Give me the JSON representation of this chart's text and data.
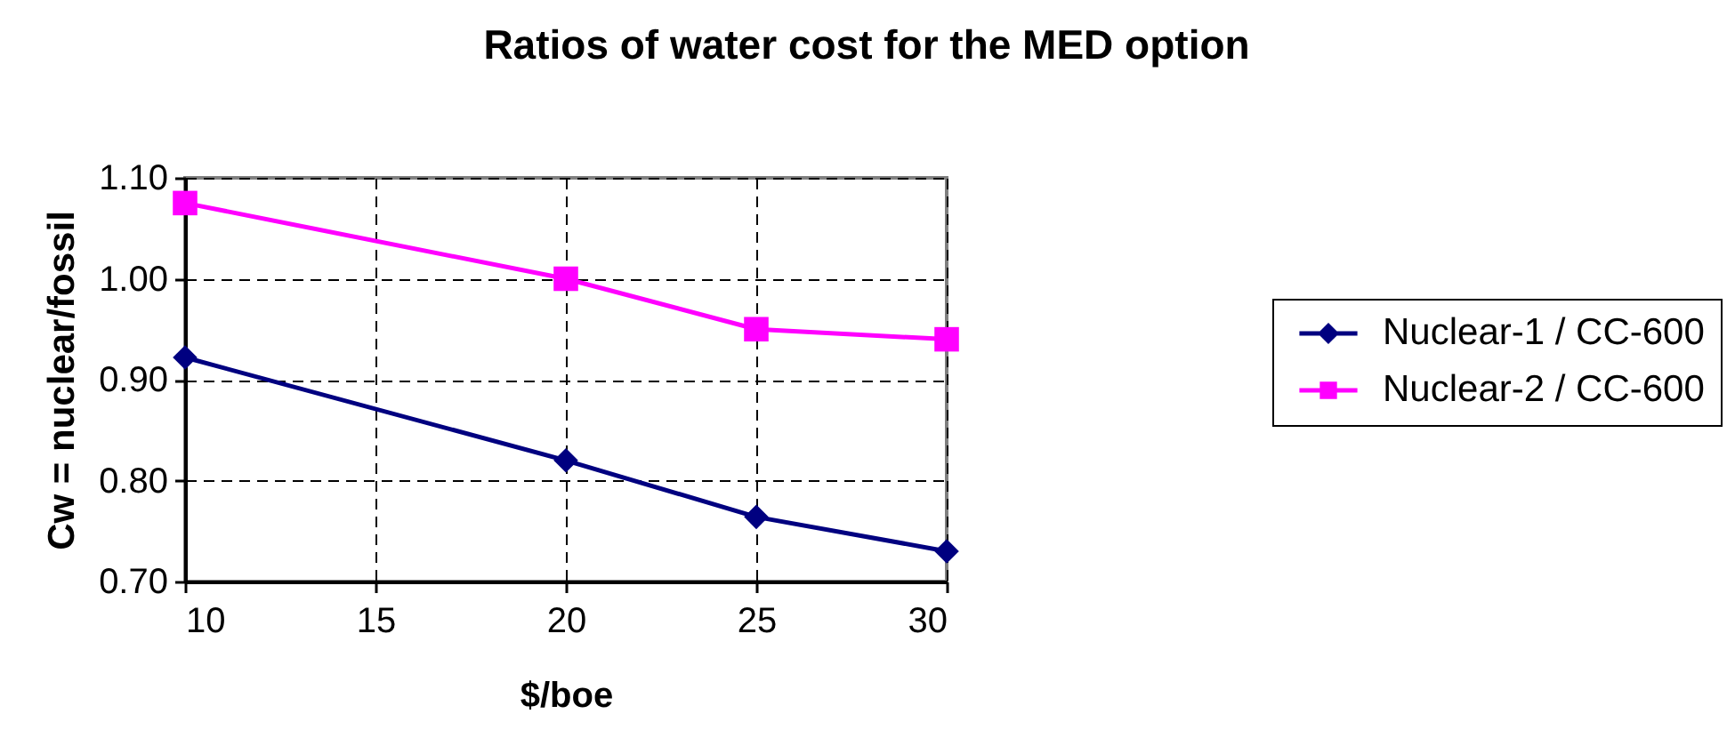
{
  "chart_data": {
    "type": "line",
    "title": "Ratios of water cost for the MED option",
    "xlabel": "$/boe",
    "ylabel": "Cw = nuclear/fossil",
    "x": [
      10,
      20,
      25,
      30
    ],
    "series": [
      {
        "name": "Nuclear-1 / CC-600",
        "color": "#000080",
        "marker": "diamond",
        "values": [
          0.922,
          0.82,
          0.764,
          0.73
        ]
      },
      {
        "name": "Nuclear-2 / CC-600",
        "color": "#ff00ff",
        "marker": "square",
        "values": [
          1.075,
          1.0,
          0.95,
          0.94
        ]
      }
    ],
    "xlim": [
      10,
      30
    ],
    "xticks": [
      10,
      15,
      20,
      25,
      30
    ],
    "ylim": [
      0.7,
      1.1
    ],
    "yticks": [
      {
        "value": 0.7,
        "label": "0.70"
      },
      {
        "value": 0.8,
        "label": "0.80"
      },
      {
        "value": 0.9,
        "label": "0.90"
      },
      {
        "value": 1.0,
        "label": "1.00"
      },
      {
        "value": 1.1,
        "label": "1.10"
      }
    ],
    "grid": true,
    "legend": "right",
    "line_style": "solid"
  }
}
